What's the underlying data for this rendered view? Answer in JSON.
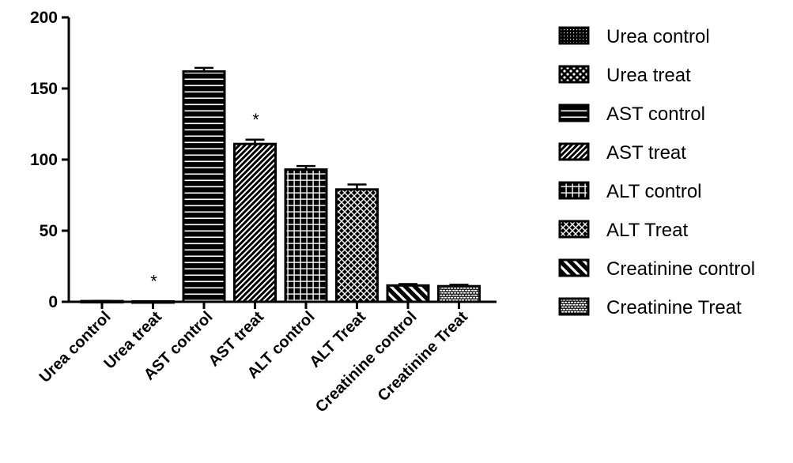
{
  "chart_data": {
    "type": "bar",
    "title": "",
    "xlabel": "",
    "ylabel": "",
    "ylim": [
      0,
      200
    ],
    "yticks": [
      0,
      50,
      100,
      150,
      200
    ],
    "grid": false,
    "legend_position": "right",
    "categories": [
      "Urea control",
      "Urea treat",
      "AST control",
      "AST treat",
      "ALT control",
      "ALT Treat",
      "Creatinine control",
      "Creatinine Treat"
    ],
    "values": [
      0.5,
      0.3,
      162,
      111,
      93,
      79,
      11.5,
      11
    ],
    "errors": [
      0.2,
      0.1,
      2.5,
      3,
      2.5,
      3.5,
      1,
      1
    ],
    "patterns": [
      "dotted",
      "checker",
      "horizontal-lines",
      "diagonal-lines",
      "grid",
      "crosshatch",
      "reverse-diagonal-thick",
      "brick"
    ],
    "annotations": [
      {
        "category": "Urea treat",
        "text": "*"
      },
      {
        "category": "AST treat",
        "text": "*"
      }
    ],
    "legend": [
      "Urea control",
      "Urea treat",
      "AST control",
      "AST treat",
      "ALT control",
      "ALT Treat",
      "Creatinine control",
      "Creatinine Treat"
    ],
    "colors": {
      "bar_fill": "#000000",
      "pattern_line": "#ffffff",
      "axis": "#000000"
    }
  }
}
